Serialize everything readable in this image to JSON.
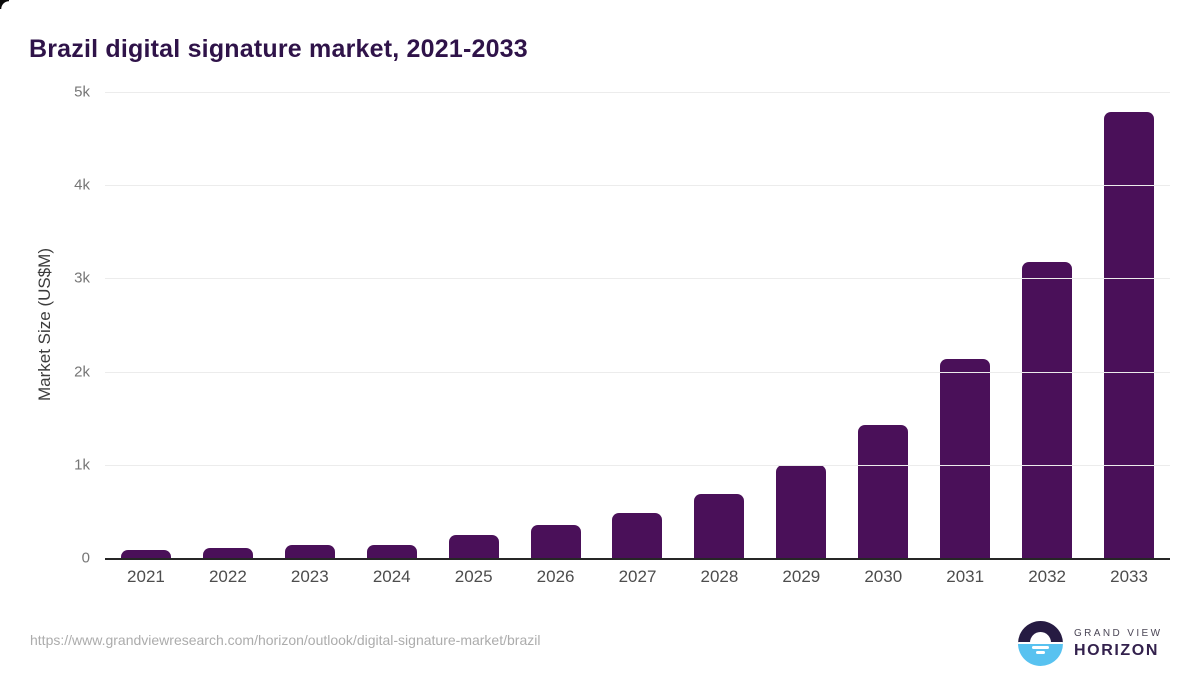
{
  "page": {
    "title": "Brazil digital signature market, 2021-2033"
  },
  "chart_data": {
    "type": "bar",
    "title": "Brazil digital signature market, 2021-2033",
    "categories": [
      "2021",
      "2022",
      "2023",
      "2024",
      "2025",
      "2026",
      "2027",
      "2028",
      "2029",
      "2030",
      "2031",
      "2032",
      "2033"
    ],
    "values": [
      85,
      107,
      139,
      143,
      247,
      350,
      488,
      687,
      998,
      1430,
      2135,
      3176,
      4790
    ],
    "xlabel": "",
    "ylabel": "Market Size (US$M)",
    "ylim": [
      0,
      5000
    ],
    "yticks": [
      {
        "label": "5k",
        "value": 5000
      },
      {
        "label": "4k",
        "value": 4000
      },
      {
        "label": "3k",
        "value": 3000
      },
      {
        "label": "2k",
        "value": 2000
      },
      {
        "label": "1k",
        "value": 1000
      },
      {
        "label": "0",
        "value": 0
      }
    ],
    "grid": true,
    "legend": false,
    "bar_color": "#4a1059"
  },
  "footer": {
    "source_url": "https://www.grandviewresearch.com/horizon/outlook/digital-signature-market/brazil",
    "logo": {
      "line1": "GRAND VIEW",
      "line2": "HORIZON"
    }
  },
  "colors": {
    "bar": "#4a1059",
    "title": "#2f1349",
    "gridline": "#ececec",
    "axis_line": "#262626",
    "x_tick": "#4d4d4d",
    "y_tick": "#767676",
    "y_axis_title": "#3c3c3c",
    "url_text": "#acacac",
    "logo_navy": "#261b42",
    "logo_blue": "#58c2f0",
    "logo_text": "#33214d"
  }
}
